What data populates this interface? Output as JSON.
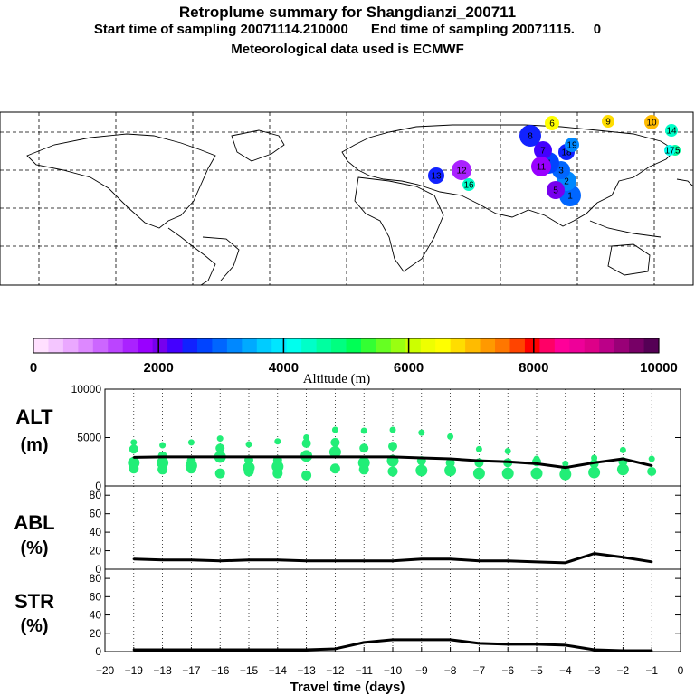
{
  "header": {
    "title": "Retroplume summary for Shangdianzi_200711",
    "sampling": "Start time of sampling 20071114.210000      End time of sampling 20071115.     0",
    "met": "Meteorological data used is ECMWF"
  },
  "colors": {
    "plume": "#22ee77",
    "line": "#000000"
  },
  "map": {
    "plume_points": [
      {
        "label": "1",
        "alt": 3000
      },
      {
        "label": "2",
        "alt": 3100
      },
      {
        "label": "3",
        "alt": 2900
      },
      {
        "label": "4",
        "alt": 2800
      },
      {
        "label": "5",
        "alt": 2000
      },
      {
        "label": "6",
        "alt": 6500
      },
      {
        "label": "7",
        "alt": 2200
      },
      {
        "label": "8",
        "alt": 2400
      },
      {
        "label": "9",
        "alt": 6800
      },
      {
        "label": "10",
        "alt": 7000
      },
      {
        "label": "11",
        "alt": 1700
      },
      {
        "label": "12",
        "alt": 1600
      },
      {
        "label": "13",
        "alt": 2600
      },
      {
        "label": "14",
        "alt": 4400
      },
      {
        "label": "15",
        "alt": 4600
      },
      {
        "label": "16",
        "alt": 4300
      },
      {
        "label": "17",
        "alt": 4200
      },
      {
        "label": "18",
        "alt": 2500
      },
      {
        "label": "19",
        "alt": 3100
      }
    ]
  },
  "colorbar": {
    "ticks": [
      "0",
      "2000",
      "4000",
      "6000",
      "8000",
      "10000"
    ],
    "label": "Altitude (m)",
    "colors": [
      "#ffe0ff",
      "#f4c6ff",
      "#eaa8ff",
      "#dd88ff",
      "#cc66ff",
      "#bb44ff",
      "#aa22ff",
      "#9900ff",
      "#7700ee",
      "#4400ff",
      "#1122ff",
      "#0044ff",
      "#0066ff",
      "#0088ff",
      "#00aaff",
      "#00ccff",
      "#00e6ff",
      "#00ffee",
      "#00ffc8",
      "#00ffa0",
      "#00ff80",
      "#00ff55",
      "#33ff33",
      "#66ff22",
      "#99ff11",
      "#ccff00",
      "#eeff00",
      "#ffff00",
      "#ffdd00",
      "#ffbb00",
      "#ff9900",
      "#ff7700",
      "#ff4400",
      "#ff0000",
      "#ff0066",
      "#ff0099",
      "#ee0099",
      "#dd0088",
      "#bb0088",
      "#990077",
      "#770066",
      "#550055"
    ]
  },
  "chart_data": [
    {
      "type": "line",
      "panel": "ALT",
      "ylabel": "ALT (m)",
      "ylim": [
        0,
        10000
      ],
      "yticks": [
        "0",
        "5000",
        "10000"
      ],
      "x": [
        -19,
        -18,
        -17,
        -16,
        -15,
        -14,
        -13,
        -12,
        -11,
        -10,
        -9,
        -8,
        -7,
        -6,
        -5,
        -4,
        -3,
        -2,
        -1
      ],
      "values": [
        2950,
        3000,
        3000,
        3000,
        3000,
        3000,
        3000,
        3000,
        3000,
        3000,
        2900,
        2800,
        2600,
        2500,
        2300,
        1900,
        2400,
        2800,
        2100
      ],
      "scatter": [
        {
          "x": -19,
          "y": [
            4500,
            3800,
            2400,
            1800
          ]
        },
        {
          "x": -18,
          "y": [
            4200,
            3100,
            2400,
            1700
          ]
        },
        {
          "x": -17,
          "y": [
            4500,
            2600,
            2100,
            1800
          ]
        },
        {
          "x": -16,
          "y": [
            4900,
            3900,
            3000,
            1300
          ]
        },
        {
          "x": -15,
          "y": [
            4300,
            2700,
            1900,
            1500
          ]
        },
        {
          "x": -14,
          "y": [
            4600,
            2700,
            2000,
            1300
          ]
        },
        {
          "x": -13,
          "y": [
            5000,
            4400,
            3100,
            1100
          ]
        },
        {
          "x": -12,
          "y": [
            5800,
            4500,
            3500,
            1800
          ]
        },
        {
          "x": -11,
          "y": [
            5700,
            3900,
            2400,
            1700
          ]
        },
        {
          "x": -10,
          "y": [
            5800,
            4100,
            2600,
            1500
          ]
        },
        {
          "x": -9,
          "y": [
            5500,
            2600,
            1600
          ]
        },
        {
          "x": -8,
          "y": [
            5100,
            2400,
            1600
          ]
        },
        {
          "x": -7,
          "y": [
            3800,
            2400,
            1300
          ]
        },
        {
          "x": -6,
          "y": [
            3600,
            2400,
            1300
          ]
        },
        {
          "x": -5,
          "y": [
            2800,
            2500,
            1300
          ]
        },
        {
          "x": -4,
          "y": [
            2300,
            1600,
            1200
          ]
        },
        {
          "x": -3,
          "y": [
            2900,
            2300,
            1400
          ]
        },
        {
          "x": -2,
          "y": [
            3700,
            2500,
            1700
          ]
        },
        {
          "x": -1,
          "y": [
            2800,
            1500
          ]
        }
      ]
    },
    {
      "type": "line",
      "panel": "ABL",
      "ylabel": "ABL (%)",
      "ylim": [
        0,
        90
      ],
      "yticks": [
        "0",
        "20",
        "40",
        "60",
        "80"
      ],
      "x": [
        -19,
        -18,
        -17,
        -16,
        -15,
        -14,
        -13,
        -12,
        -11,
        -10,
        -9,
        -8,
        -7,
        -6,
        -5,
        -4,
        -3,
        -2,
        -1
      ],
      "values": [
        11,
        10,
        10,
        9,
        10,
        10,
        9,
        9,
        9,
        9,
        11,
        11,
        9,
        9,
        8,
        7,
        17,
        13,
        8
      ]
    },
    {
      "type": "line",
      "panel": "STR",
      "ylabel": "STR (%)",
      "xlabel": "Travel time (days)",
      "ylim": [
        0,
        90
      ],
      "yticks": [
        "0",
        "20",
        "40",
        "60",
        "80"
      ],
      "xlim": [
        -20,
        0
      ],
      "xticks": [
        "−20",
        "−19",
        "−18",
        "−17",
        "−16",
        "−15",
        "−14",
        "−13",
        "−12",
        "−11",
        "−10",
        "−9",
        "−8",
        "−7",
        "−6",
        "−5",
        "−4",
        "−3",
        "−2",
        "−1",
        "0"
      ],
      "x": [
        -19,
        -18,
        -17,
        -16,
        -15,
        -14,
        -13,
        -12,
        -11,
        -10,
        -9,
        -8,
        -7,
        -6,
        -5,
        -4,
        -3,
        -2,
        -1
      ],
      "values": [
        2,
        2,
        2,
        2,
        2,
        2,
        2,
        3,
        10,
        13,
        13,
        13,
        9,
        8,
        8,
        7,
        2,
        1,
        1
      ]
    }
  ]
}
